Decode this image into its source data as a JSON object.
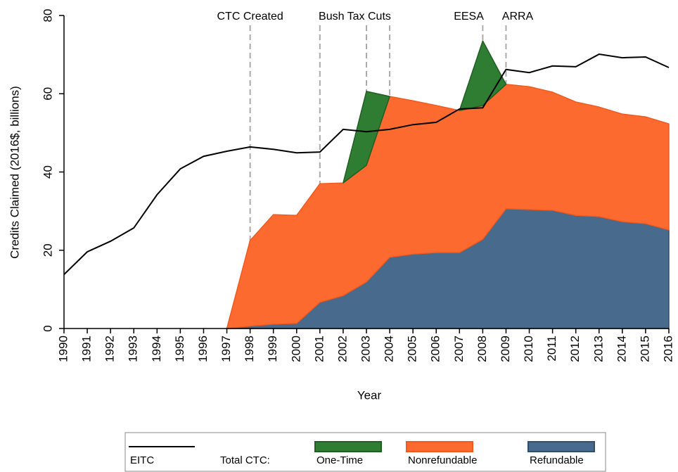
{
  "chart_data": {
    "type": "area",
    "x_label": "Year",
    "y_label": "Credits Claimed (2016$, billions)",
    "x": [
      1990,
      1991,
      1992,
      1993,
      1994,
      1995,
      1996,
      1997,
      1998,
      1999,
      2000,
      2001,
      2002,
      2003,
      2004,
      2005,
      2006,
      2007,
      2008,
      2009,
      2010,
      2011,
      2012,
      2013,
      2014,
      2015,
      2016
    ],
    "xlim": [
      1990,
      2016
    ],
    "xticks": [
      1990,
      1991,
      1992,
      1993,
      1994,
      1995,
      1996,
      1997,
      1998,
      1999,
      2000,
      2001,
      2002,
      2003,
      2004,
      2005,
      2006,
      2007,
      2008,
      2009,
      2010,
      2011,
      2012,
      2013,
      2014,
      2015,
      2016
    ],
    "ylim": [
      0,
      80
    ],
    "yticks": [
      0,
      20,
      40,
      60,
      80
    ],
    "grid": false,
    "legend_label": "Total CTC:",
    "series": [
      {
        "name": "EITC",
        "style": "line",
        "color": "#000000",
        "values": [
          13.8,
          19.6,
          22.3,
          25.7,
          34.2,
          40.8,
          44.0,
          45.3,
          46.4,
          45.8,
          44.9,
          45.1,
          50.9,
          50.3,
          50.9,
          52.1,
          52.7,
          56.1,
          56.4,
          66.2,
          65.4,
          67.1,
          66.9,
          70.1,
          69.2,
          69.4,
          66.7
        ]
      },
      {
        "name": "Refundable",
        "style": "area",
        "color": "#476a8d",
        "edge": "#2f4f6f",
        "values": [
          null,
          null,
          null,
          null,
          null,
          null,
          null,
          0,
          0.6,
          1.1,
          1.3,
          6.7,
          8.4,
          11.9,
          18.2,
          19.0,
          19.4,
          19.4,
          22.8,
          30.6,
          30.4,
          30.2,
          28.9,
          28.6,
          27.3,
          26.8,
          25.2
        ]
      },
      {
        "name": "Nonrefundable",
        "style": "area",
        "color": "#fd6a2f",
        "edge": "#f05a1e",
        "values": [
          null,
          null,
          null,
          null,
          null,
          null,
          null,
          0,
          21.9,
          28.0,
          27.6,
          30.3,
          28.8,
          29.8,
          41.1,
          39.2,
          37.6,
          36.3,
          34.2,
          31.8,
          31.4,
          30.2,
          29.0,
          28.0,
          27.5,
          27.3,
          27.1
        ]
      },
      {
        "name": "One-Time",
        "style": "area",
        "color": "#2f7d32",
        "edge": "#1f5f22",
        "values": [
          null,
          null,
          null,
          null,
          null,
          null,
          null,
          null,
          null,
          null,
          null,
          null,
          0,
          18.9,
          0,
          null,
          null,
          0,
          16.5,
          0,
          null,
          null,
          null,
          null,
          null,
          null,
          null
        ]
      }
    ],
    "event_lines": [
      1998,
      2001,
      2003,
      2004,
      2008,
      2009
    ],
    "annotations": [
      {
        "text": "CTC Created",
        "x": 1998
      },
      {
        "text": "Bush Tax Cuts",
        "x": 2002.5
      },
      {
        "text": "EESA",
        "x": 2007.4
      },
      {
        "text": "ARRA",
        "x": 2009.5
      }
    ]
  }
}
